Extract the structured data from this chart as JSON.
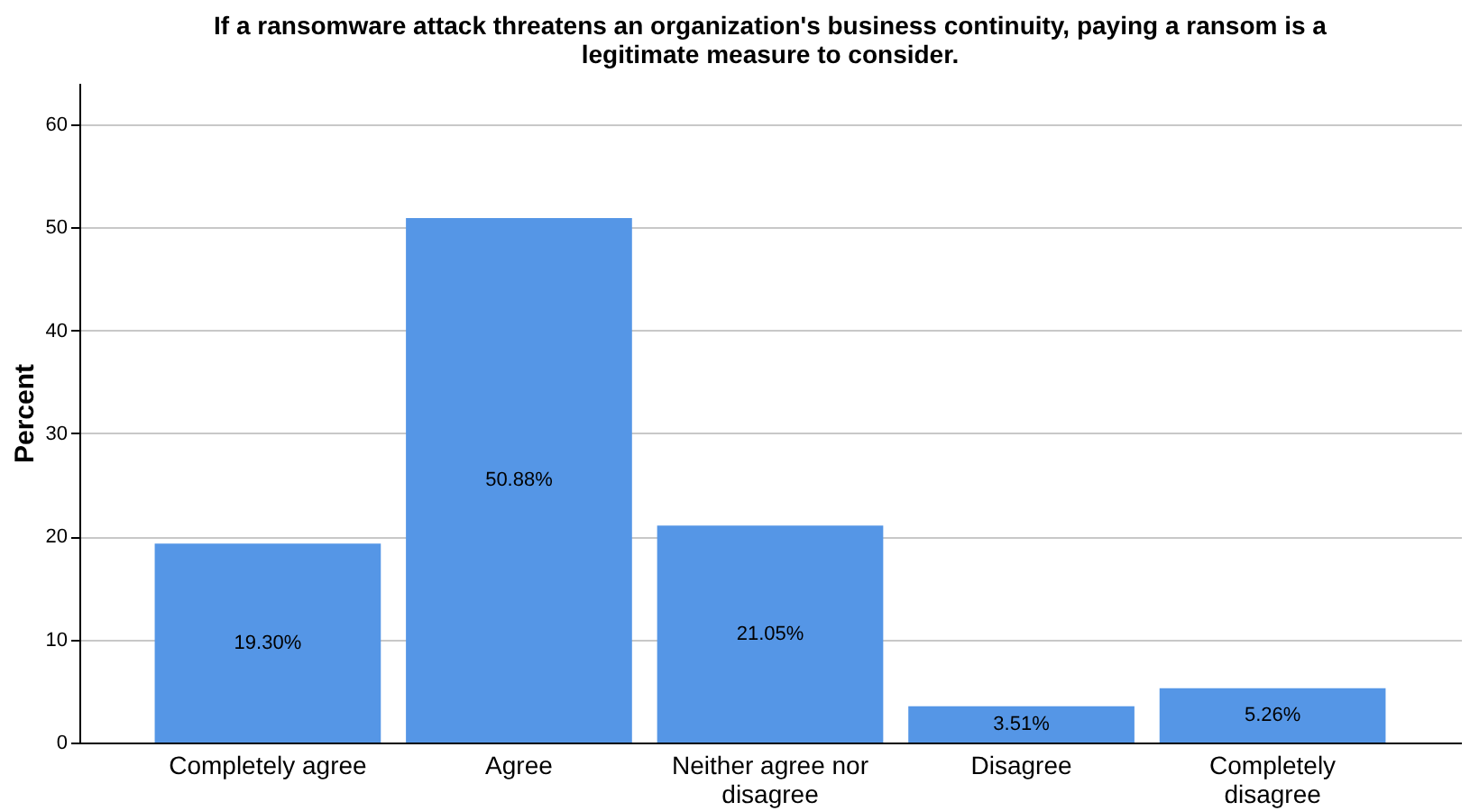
{
  "chart_data": {
    "type": "bar",
    "title": "If a ransomware attack threatens an organization's business continuity, paying a ransom is a legitimate measure to consider.",
    "ylabel": "Percent",
    "categories": [
      "Completely agree",
      "Agree",
      "Neither agree nor disagree",
      "Disagree",
      "Completely disagree"
    ],
    "values": [
      19.3,
      50.88,
      21.05,
      3.51,
      5.26
    ],
    "color": "#5596e6",
    "value_labels": [
      "19.30%",
      "50.88%",
      "21.05%",
      "3.51%",
      "5.26%"
    ],
    "ylim": [
      0,
      64
    ],
    "yticks": [
      0,
      10,
      20,
      30,
      40,
      50,
      60
    ],
    "grid": "y"
  }
}
